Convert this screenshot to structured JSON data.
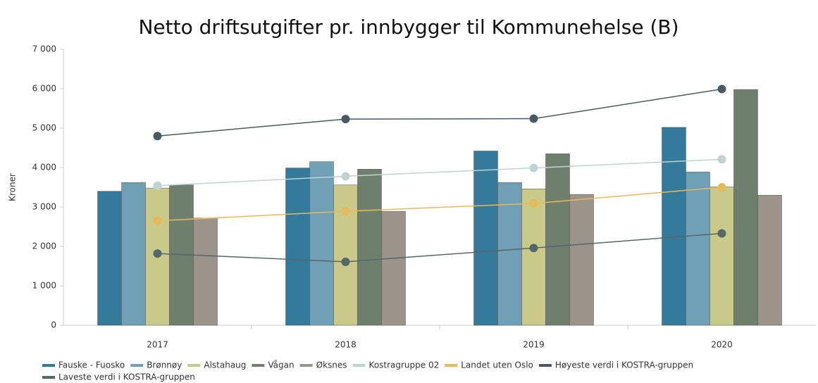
{
  "chart_data": {
    "type": "bar",
    "title": "Netto driftsutgifter pr. innbygger til Kommunehelse (B)",
    "y_label": "Kroner",
    "categories": [
      "2017",
      "2018",
      "2019",
      "2020"
    ],
    "ylim": [
      0,
      7000
    ],
    "yticks": [
      {
        "value": 0,
        "label": "0"
      },
      {
        "value": 1000,
        "label": "1 000"
      },
      {
        "value": 2000,
        "label": "2 000"
      },
      {
        "value": 3000,
        "label": "3 000"
      },
      {
        "value": 4000,
        "label": "4 000"
      },
      {
        "value": 5000,
        "label": "5 000"
      },
      {
        "value": 6000,
        "label": "6 000"
      },
      {
        "value": 7000,
        "label": "7 000"
      }
    ],
    "grid": false,
    "legend": "bottom",
    "series": [
      {
        "name": "Fauske - Fuosko",
        "color": "#347a9b",
        "type": "bar",
        "values": [
          3400,
          3990,
          4420,
          5020
        ]
      },
      {
        "name": "Brønnøy",
        "color": "#70a0b5",
        "type": "bar",
        "values": [
          3620,
          4150,
          3620,
          3890
        ]
      },
      {
        "name": "Alstahaug",
        "color": "#c9c98a",
        "type": "bar",
        "values": [
          3480,
          3560,
          3460,
          3510
        ]
      },
      {
        "name": "Vågan",
        "color": "#6e806d",
        "type": "bar",
        "values": [
          3560,
          3960,
          4350,
          5980
        ]
      },
      {
        "name": "Øksnes",
        "color": "#9c948a",
        "type": "bar",
        "values": [
          2720,
          2890,
          3320,
          3300
        ]
      },
      {
        "name": "Kostragruppe 02",
        "color": "#bfd3d1",
        "type": "line",
        "values": [
          3540,
          3780,
          3990,
          4210
        ]
      },
      {
        "name": "Landet uten Oslo",
        "color": "#e8b95a",
        "type": "line",
        "values": [
          2650,
          2890,
          3090,
          3500
        ]
      },
      {
        "name": "Høyeste verdi i KOSTRA-gruppen",
        "color": "#4a5a60",
        "type": "line",
        "values": [
          4800,
          5230,
          5240,
          5990
        ]
      },
      {
        "name": "Laveste verdi i KOSTRA-gruppen",
        "color": "#56676a",
        "type": "line",
        "values": [
          1820,
          1610,
          1960,
          2330
        ]
      }
    ]
  }
}
